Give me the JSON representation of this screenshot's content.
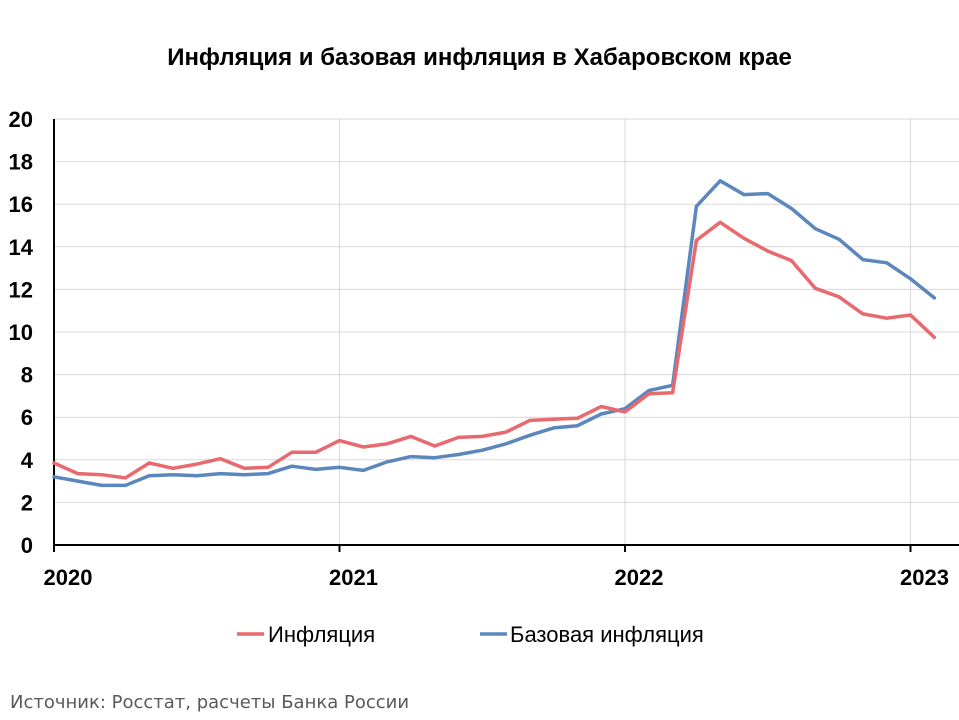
{
  "chart_data": {
    "type": "line",
    "title": "Инфляция и базовая инфляция в Хабаровском крае",
    "xlabel": "",
    "ylabel": "",
    "x_ticks": [
      "2020",
      "2021",
      "2022",
      "2023"
    ],
    "x_start": "2020-01",
    "ylim": [
      0,
      20
    ],
    "y_ticks": [
      "0",
      "2",
      "4",
      "6",
      "8",
      "10",
      "12",
      "14",
      "16",
      "18",
      "20"
    ],
    "grid": true,
    "legend_position": "bottom",
    "x": [
      "2020-01",
      "2020-02",
      "2020-03",
      "2020-04",
      "2020-05",
      "2020-06",
      "2020-07",
      "2020-08",
      "2020-09",
      "2020-10",
      "2020-11",
      "2020-12",
      "2021-01",
      "2021-02",
      "2021-03",
      "2021-04",
      "2021-05",
      "2021-06",
      "2021-07",
      "2021-08",
      "2021-09",
      "2021-10",
      "2021-11",
      "2021-12",
      "2022-01",
      "2022-02",
      "2022-03",
      "2022-04",
      "2022-05",
      "2022-06",
      "2022-07",
      "2022-08",
      "2022-09",
      "2022-10",
      "2022-11",
      "2022-12",
      "2023-01",
      "2023-02"
    ],
    "series": [
      {
        "name": "Инфляция",
        "color": "#e8696e",
        "values": [
          3.85,
          3.35,
          3.3,
          3.15,
          3.85,
          3.6,
          3.8,
          4.05,
          3.6,
          3.65,
          4.35,
          4.35,
          4.9,
          4.6,
          4.75,
          5.1,
          4.65,
          5.05,
          5.1,
          5.3,
          5.85,
          5.9,
          5.95,
          6.5,
          6.25,
          7.1,
          7.15,
          14.3,
          15.15,
          14.4,
          13.8,
          13.35,
          12.05,
          11.65,
          10.85,
          10.65,
          10.8,
          9.75
        ]
      },
      {
        "name": "Базовая инфляция",
        "color": "#5b87bd",
        "values": [
          3.2,
          3.0,
          2.8,
          2.8,
          3.25,
          3.3,
          3.25,
          3.35,
          3.3,
          3.35,
          3.7,
          3.55,
          3.65,
          3.5,
          3.9,
          4.15,
          4.1,
          4.25,
          4.45,
          4.75,
          5.15,
          5.5,
          5.6,
          6.15,
          6.4,
          7.25,
          7.5,
          15.9,
          17.1,
          16.45,
          16.5,
          15.8,
          14.85,
          14.35,
          13.4,
          13.25,
          12.5,
          11.6
        ]
      }
    ]
  },
  "source": "Источник: Росстат, расчеты Банка России"
}
